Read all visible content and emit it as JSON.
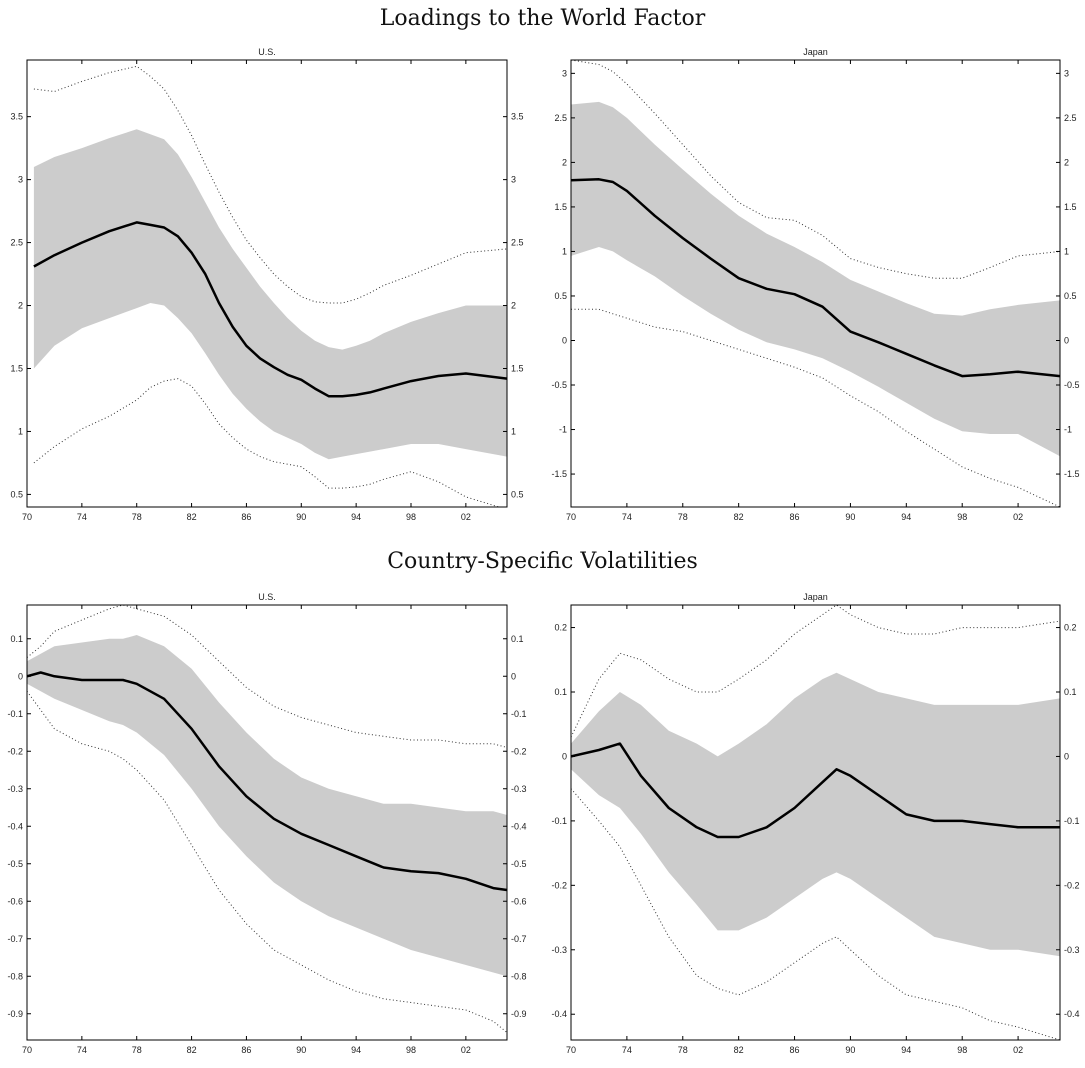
{
  "titles": {
    "top": "Loadings to the World Factor",
    "bottom": "Country-Specific Volatilities"
  },
  "chart_data": [
    {
      "type": "line",
      "group": "Loadings to the World Factor",
      "title": "U.S.",
      "xlim": [
        1970,
        2005
      ],
      "ylim": [
        0.4,
        3.95
      ],
      "x_ticks": [
        1970,
        1974,
        1978,
        1982,
        1986,
        1990,
        1994,
        1998,
        2002
      ],
      "x_tick_labels": [
        "70",
        "74",
        "78",
        "82",
        "86",
        "90",
        "94",
        "98",
        "02"
      ],
      "y_ticks": [
        0.5,
        1,
        1.5,
        2,
        2.5,
        3,
        3.5
      ],
      "y_tick_labels": [
        "0.5",
        "1",
        "1.5",
        "2",
        "2.5",
        "3",
        "3.5"
      ],
      "grid": false,
      "x": [
        1970.5,
        1972,
        1974,
        1976,
        1978,
        1979,
        1980,
        1981,
        1982,
        1983,
        1984,
        1985,
        1986,
        1987,
        1988,
        1989,
        1990,
        1991,
        1992,
        1993,
        1994,
        1995,
        1996,
        1998,
        2000,
        2002,
        2005
      ],
      "series": [
        {
          "role": "median",
          "values": [
            2.31,
            2.4,
            2.5,
            2.59,
            2.66,
            2.64,
            2.62,
            2.55,
            2.42,
            2.25,
            2.02,
            1.83,
            1.68,
            1.58,
            1.51,
            1.45,
            1.41,
            1.34,
            1.28,
            1.28,
            1.29,
            1.31,
            1.34,
            1.4,
            1.44,
            1.46,
            1.42
          ]
        },
        {
          "role": "band-upper",
          "values": [
            3.1,
            3.18,
            3.25,
            3.33,
            3.4,
            3.36,
            3.32,
            3.2,
            3.02,
            2.82,
            2.62,
            2.45,
            2.3,
            2.15,
            2.02,
            1.9,
            1.8,
            1.72,
            1.67,
            1.65,
            1.68,
            1.72,
            1.78,
            1.87,
            1.94,
            2.0,
            2.0
          ]
        },
        {
          "role": "band-lower",
          "values": [
            1.5,
            1.68,
            1.82,
            1.9,
            1.98,
            2.02,
            2.0,
            1.9,
            1.78,
            1.62,
            1.45,
            1.3,
            1.18,
            1.08,
            1.0,
            0.95,
            0.9,
            0.83,
            0.78,
            0.8,
            0.82,
            0.84,
            0.86,
            0.9,
            0.9,
            0.86,
            0.8
          ]
        },
        {
          "role": "outer-upper",
          "values": [
            3.72,
            3.7,
            3.78,
            3.85,
            3.9,
            3.82,
            3.72,
            3.55,
            3.35,
            3.12,
            2.9,
            2.7,
            2.52,
            2.38,
            2.25,
            2.15,
            2.07,
            2.03,
            2.02,
            2.02,
            2.05,
            2.1,
            2.16,
            2.24,
            2.33,
            2.42,
            2.45
          ]
        },
        {
          "role": "outer-lower",
          "values": [
            0.75,
            0.88,
            1.02,
            1.12,
            1.25,
            1.35,
            1.4,
            1.42,
            1.36,
            1.22,
            1.06,
            0.95,
            0.86,
            0.8,
            0.76,
            0.74,
            0.72,
            0.64,
            0.55,
            0.55,
            0.56,
            0.58,
            0.62,
            0.68,
            0.6,
            0.48,
            0.38
          ]
        }
      ]
    },
    {
      "type": "line",
      "group": "Loadings to the World Factor",
      "title": "Japan",
      "xlim": [
        1970,
        2005
      ],
      "ylim": [
        -1.87,
        3.15
      ],
      "x_ticks": [
        1970,
        1974,
        1978,
        1982,
        1986,
        1990,
        1994,
        1998,
        2002
      ],
      "x_tick_labels": [
        "70",
        "74",
        "78",
        "82",
        "86",
        "90",
        "94",
        "98",
        "02"
      ],
      "y_ticks": [
        -1.5,
        -1,
        -0.5,
        0,
        0.5,
        1,
        1.5,
        2,
        2.5,
        3
      ],
      "y_tick_labels": [
        "-1.5",
        "-1",
        "-0.5",
        "0",
        "0.5",
        "1",
        "1.5",
        "2",
        "2.5",
        "3"
      ],
      "grid": false,
      "x": [
        1970,
        1972,
        1973,
        1974,
        1976,
        1978,
        1980,
        1982,
        1984,
        1986,
        1988,
        1990,
        1992,
        1994,
        1996,
        1998,
        2000,
        2002,
        2005
      ],
      "series": [
        {
          "role": "median",
          "values": [
            1.8,
            1.81,
            1.78,
            1.68,
            1.4,
            1.15,
            0.92,
            0.7,
            0.58,
            0.52,
            0.38,
            0.1,
            -0.02,
            -0.15,
            -0.28,
            -0.4,
            -0.38,
            -0.35,
            -0.4
          ]
        },
        {
          "role": "band-upper",
          "values": [
            2.65,
            2.68,
            2.62,
            2.5,
            2.2,
            1.92,
            1.65,
            1.4,
            1.2,
            1.05,
            0.88,
            0.68,
            0.55,
            0.42,
            0.3,
            0.28,
            0.35,
            0.4,
            0.45
          ]
        },
        {
          "role": "band-lower",
          "values": [
            0.95,
            1.05,
            1.0,
            0.9,
            0.72,
            0.5,
            0.3,
            0.12,
            -0.02,
            -0.1,
            -0.2,
            -0.35,
            -0.52,
            -0.7,
            -0.88,
            -1.02,
            -1.05,
            -1.05,
            -1.3
          ]
        },
        {
          "role": "outer-upper",
          "values": [
            3.15,
            3.1,
            3.02,
            2.88,
            2.55,
            2.2,
            1.85,
            1.55,
            1.38,
            1.35,
            1.18,
            0.92,
            0.82,
            0.75,
            0.7,
            0.7,
            0.82,
            0.95,
            1.0
          ]
        },
        {
          "role": "outer-lower",
          "values": [
            0.35,
            0.35,
            0.3,
            0.25,
            0.15,
            0.1,
            0.0,
            -0.1,
            -0.2,
            -0.3,
            -0.42,
            -0.62,
            -0.8,
            -1.02,
            -1.22,
            -1.42,
            -1.55,
            -1.65,
            -1.87
          ]
        }
      ]
    },
    {
      "type": "line",
      "group": "Country-Specific Volatilities",
      "title": "U.S.",
      "xlim": [
        1970,
        2005
      ],
      "ylim": [
        -0.97,
        0.19
      ],
      "x_ticks": [
        1970,
        1974,
        1978,
        1982,
        1986,
        1990,
        1994,
        1998,
        2002
      ],
      "x_tick_labels": [
        "70",
        "74",
        "78",
        "82",
        "86",
        "90",
        "94",
        "98",
        "02"
      ],
      "y_ticks": [
        -0.9,
        -0.8,
        -0.7,
        -0.6,
        -0.5,
        -0.4,
        -0.3,
        -0.2,
        -0.1,
        0,
        0.1
      ],
      "y_tick_labels": [
        "-0.9",
        "-0.8",
        "-0.7",
        "-0.6",
        "-0.5",
        "-0.4",
        "-0.3",
        "-0.2",
        "-0.1",
        "0",
        "0.1"
      ],
      "grid": false,
      "x": [
        1970,
        1971,
        1972,
        1974,
        1976,
        1977,
        1978,
        1980,
        1982,
        1984,
        1986,
        1988,
        1990,
        1992,
        1994,
        1996,
        1998,
        2000,
        2002,
        2004,
        2005
      ],
      "series": [
        {
          "role": "median",
          "values": [
            0.0,
            0.01,
            0.0,
            -0.01,
            -0.01,
            -0.01,
            -0.02,
            -0.06,
            -0.14,
            -0.24,
            -0.32,
            -0.38,
            -0.42,
            -0.45,
            -0.48,
            -0.51,
            -0.52,
            -0.525,
            -0.54,
            -0.565,
            -0.57
          ]
        },
        {
          "role": "band-upper",
          "values": [
            0.04,
            0.06,
            0.08,
            0.09,
            0.1,
            0.1,
            0.11,
            0.08,
            0.02,
            -0.07,
            -0.15,
            -0.22,
            -0.27,
            -0.3,
            -0.32,
            -0.34,
            -0.34,
            -0.35,
            -0.36,
            -0.36,
            -0.37
          ]
        },
        {
          "role": "band-lower",
          "values": [
            -0.02,
            -0.04,
            -0.06,
            -0.09,
            -0.12,
            -0.13,
            -0.15,
            -0.21,
            -0.3,
            -0.4,
            -0.48,
            -0.55,
            -0.6,
            -0.64,
            -0.67,
            -0.7,
            -0.73,
            -0.75,
            -0.77,
            -0.79,
            -0.8
          ]
        },
        {
          "role": "outer-upper",
          "values": [
            0.05,
            0.08,
            0.12,
            0.15,
            0.18,
            0.19,
            0.18,
            0.16,
            0.11,
            0.04,
            -0.03,
            -0.08,
            -0.11,
            -0.13,
            -0.15,
            -0.16,
            -0.17,
            -0.17,
            -0.18,
            -0.18,
            -0.19
          ]
        },
        {
          "role": "outer-lower",
          "values": [
            -0.04,
            -0.09,
            -0.14,
            -0.18,
            -0.2,
            -0.22,
            -0.25,
            -0.33,
            -0.45,
            -0.57,
            -0.66,
            -0.73,
            -0.77,
            -0.81,
            -0.84,
            -0.86,
            -0.87,
            -0.88,
            -0.89,
            -0.92,
            -0.95
          ]
        }
      ]
    },
    {
      "type": "line",
      "group": "Country-Specific Volatilities",
      "title": "Japan",
      "xlim": [
        1970,
        2005
      ],
      "ylim": [
        -0.44,
        0.235
      ],
      "x_ticks": [
        1970,
        1974,
        1978,
        1982,
        1986,
        1990,
        1994,
        1998,
        2002
      ],
      "x_tick_labels": [
        "70",
        "74",
        "78",
        "82",
        "86",
        "90",
        "94",
        "98",
        "02"
      ],
      "y_ticks": [
        -0.4,
        -0.3,
        -0.2,
        -0.1,
        0,
        0.1,
        0.2
      ],
      "y_tick_labels": [
        "-0.4",
        "-0.3",
        "-0.2",
        "-0.1",
        "0",
        "0.1",
        "0.2"
      ],
      "grid": false,
      "x": [
        1970,
        1972,
        1973.5,
        1975,
        1977,
        1979,
        1980.5,
        1982,
        1984,
        1986,
        1988,
        1989,
        1990,
        1992,
        1994,
        1996,
        1998,
        2000,
        2002,
        2005
      ],
      "series": [
        {
          "role": "median",
          "values": [
            0.0,
            0.01,
            0.02,
            -0.03,
            -0.08,
            -0.11,
            -0.125,
            -0.125,
            -0.11,
            -0.08,
            -0.04,
            -0.02,
            -0.03,
            -0.06,
            -0.09,
            -0.1,
            -0.1,
            -0.105,
            -0.11,
            -0.11
          ]
        },
        {
          "role": "band-upper",
          "values": [
            0.02,
            0.07,
            0.1,
            0.08,
            0.04,
            0.02,
            0.0,
            0.02,
            0.05,
            0.09,
            0.12,
            0.13,
            0.12,
            0.1,
            0.09,
            0.08,
            0.08,
            0.08,
            0.08,
            0.09
          ]
        },
        {
          "role": "band-lower",
          "values": [
            -0.02,
            -0.06,
            -0.08,
            -0.12,
            -0.18,
            -0.23,
            -0.27,
            -0.27,
            -0.25,
            -0.22,
            -0.19,
            -0.18,
            -0.19,
            -0.22,
            -0.25,
            -0.28,
            -0.29,
            -0.3,
            -0.3,
            -0.31
          ]
        },
        {
          "role": "outer-upper",
          "values": [
            0.03,
            0.12,
            0.16,
            0.15,
            0.12,
            0.1,
            0.1,
            0.12,
            0.15,
            0.19,
            0.22,
            0.235,
            0.22,
            0.2,
            0.19,
            0.19,
            0.2,
            0.2,
            0.2,
            0.21
          ]
        },
        {
          "role": "outer-lower",
          "values": [
            -0.05,
            -0.1,
            -0.14,
            -0.2,
            -0.28,
            -0.34,
            -0.36,
            -0.37,
            -0.35,
            -0.32,
            -0.29,
            -0.28,
            -0.3,
            -0.34,
            -0.37,
            -0.38,
            -0.39,
            -0.41,
            -0.42,
            -0.44
          ]
        }
      ]
    }
  ]
}
